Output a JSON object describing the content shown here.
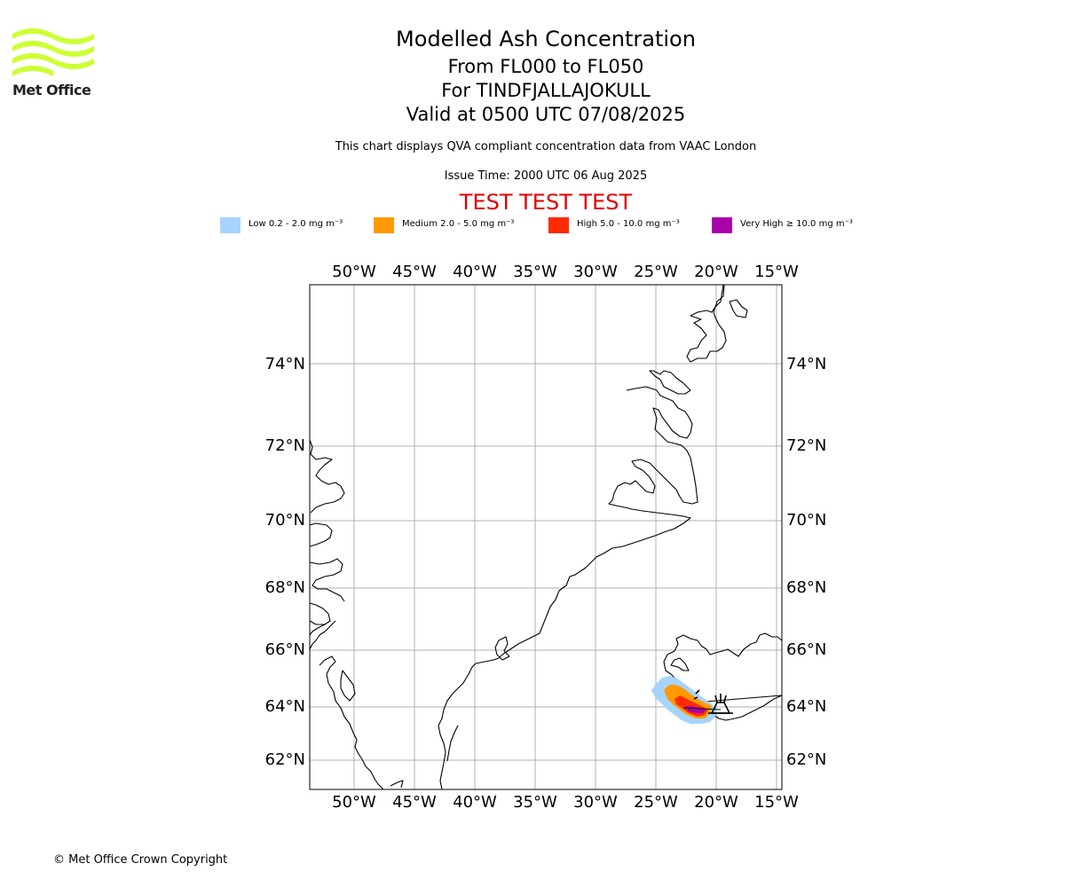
{
  "logo": {
    "text": "Met Office",
    "icon": "met-office-wave-logo",
    "color": "#ccff33"
  },
  "title": {
    "main": "Modelled Ash Concentration",
    "flight_levels": "From FL000 to FL050",
    "volcano": "For TINDFJALLAJOKULL",
    "valid": "Valid at 0500 UTC 07/08/2025",
    "description": "This chart displays QVA compliant concentration data from VAAC London",
    "issue_time": "Issue Time: 2000 UTC 06 Aug 2025",
    "test_banner": "TEST TEST TEST"
  },
  "legend": [
    {
      "label": "Low 0.2 - 2.0 mg m⁻³",
      "color": "#a6d4ff"
    },
    {
      "label": "Medium 2.0 - 5.0 mg m⁻³",
      "color": "#ff9900"
    },
    {
      "label": "High 5.0 - 10.0 mg m⁻³",
      "color": "#ff2a00"
    },
    {
      "label": "Very High ≥ 10.0 mg m⁻³",
      "color": "#aa00aa"
    }
  ],
  "map": {
    "longitude_ticks": [
      "50°W",
      "45°W",
      "40°W",
      "35°W",
      "30°W",
      "25°W",
      "20°W",
      "15°W"
    ],
    "latitude_ticks": [
      "74°N",
      "72°N",
      "70°N",
      "68°N",
      "66°N",
      "64°N",
      "62°N"
    ],
    "grid_color": "#b0b0b0",
    "volcano_marker_icon": "volcano-icon"
  },
  "footer": {
    "copyright": "© Met Office Crown Copyright"
  }
}
